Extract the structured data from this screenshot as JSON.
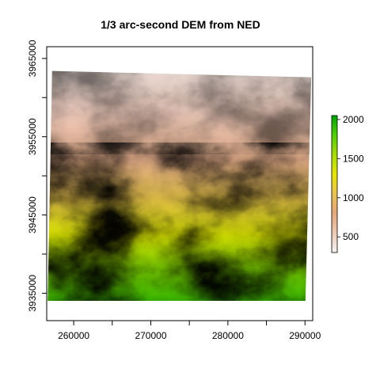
{
  "chart_data": {
    "type": "heatmap",
    "title": "1/3 arc-second DEM from NED",
    "xlabel": "",
    "ylabel": "",
    "xlim": [
      256500,
      291000
    ],
    "ylim": [
      3931500,
      3966500
    ],
    "x_ticks": [
      {
        "value": 260000,
        "label": "260000"
      },
      {
        "value": 270000,
        "label": "270000"
      },
      {
        "value": 280000,
        "label": "280000"
      },
      {
        "value": 290000,
        "label": "290000"
      }
    ],
    "x_minor_ticks": [
      265000,
      275000,
      285000
    ],
    "y_ticks": [
      {
        "value": 3935000,
        "label": "3935000"
      },
      {
        "value": 3945000,
        "label": "3945000"
      },
      {
        "value": 3955000,
        "label": "3955000"
      },
      {
        "value": 3965000,
        "label": "3965000"
      }
    ],
    "y_minor_ticks": [
      3940000,
      3950000,
      3960000
    ],
    "raster_extent": {
      "top_left": [
        257200,
        3963400
      ],
      "top_right": [
        290800,
        3962600
      ],
      "bottom_right": [
        290000,
        3931900
      ],
      "bottom_left": [
        256600,
        3932700
      ]
    },
    "colorbar": {
      "range": [
        300,
        2050
      ],
      "ticks": [
        {
          "value": 500,
          "label": "500"
        },
        {
          "value": 1000,
          "label": "1000"
        },
        {
          "value": 1500,
          "label": "1500"
        },
        {
          "value": 2000,
          "label": "2000"
        }
      ],
      "colors": [
        "#F2F2F2",
        "#EEC9B4",
        "#E6A67A",
        "#EBC450",
        "#E6E600",
        "#A8DD00",
        "#4FCF00",
        "#00A600"
      ]
    },
    "legend_position": "right",
    "grid": false
  }
}
